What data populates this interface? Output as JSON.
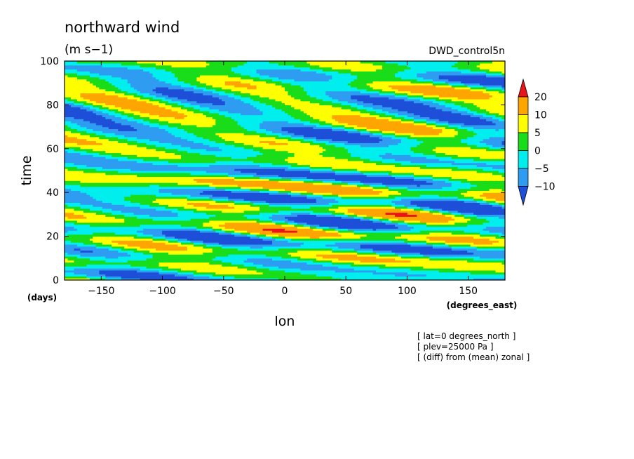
{
  "chart_data": {
    "type": "heatmap",
    "title": "northward wind",
    "units": "(m s−1)",
    "dataset": "DWD_control5n",
    "xlabel": "lon",
    "ylabel": "time",
    "xunits": "(degrees_east)",
    "yunits": "(days)",
    "xlim": [
      -180,
      180
    ],
    "ylim": [
      0,
      100
    ],
    "xticks": [
      -150,
      -100,
      -50,
      0,
      50,
      100,
      150
    ],
    "xtick_labels": [
      "−150",
      "−100",
      "−50",
      "0",
      "50",
      "100",
      "150"
    ],
    "yticks": [
      0,
      20,
      40,
      60,
      80,
      100
    ],
    "ytick_labels": [
      "0",
      "20",
      "40",
      "60",
      "80",
      "100"
    ],
    "colorbar": {
      "levels": [
        -10,
        -5,
        0,
        5,
        10,
        20
      ],
      "labels": [
        "−10",
        "−5",
        "0",
        "5",
        "10",
        "20"
      ],
      "colors": [
        "#1d4fd8",
        "#2e9cf0",
        "#00eeee",
        "#19dd19",
        "#ffff00",
        "#ffa500",
        "#e8141a"
      ]
    },
    "annotations": [
      "[ lat=0 degrees_north ]",
      "[ plev=25000 Pa ]",
      "[ (diff) from (mean) zonal ]"
    ]
  }
}
